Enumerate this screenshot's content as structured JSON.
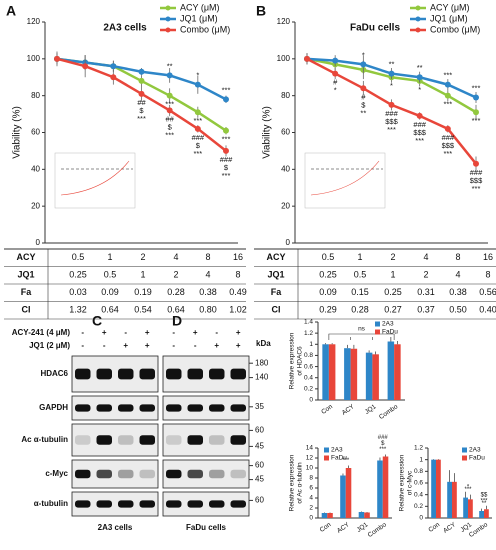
{
  "panels": [
    "A",
    "B",
    "C",
    "D"
  ],
  "chart_data": [
    {
      "type": "line",
      "title": "2A3  cells",
      "y_label": "Viability (%)",
      "categories": [
        null,
        null,
        null,
        null,
        null,
        null,
        null
      ],
      "ylim": [
        0,
        120
      ],
      "yticks": [
        0,
        20,
        40,
        60,
        80,
        100,
        120
      ],
      "legend": "upper right",
      "series": [
        {
          "name": "ACY (μM)",
          "color": "#92c83e",
          "values": [
            100,
            98,
            96,
            88,
            80,
            71,
            61
          ],
          "errors": [
            3,
            4,
            3,
            3,
            4,
            3,
            2
          ],
          "significance": [
            null,
            null,
            null,
            null,
            [
              "***"
            ],
            [
              "***"
            ],
            [
              "***"
            ]
          ]
        },
        {
          "name": "JQ1 (μM)",
          "color": "#2e86c8",
          "values": [
            100,
            98,
            96,
            93,
            91,
            86,
            78
          ],
          "errors": [
            3,
            4,
            3,
            2,
            4,
            5,
            2
          ],
          "significance": [
            null,
            null,
            null,
            null,
            [
              "**"
            ],
            [
              "*"
            ],
            [
              "***"
            ]
          ]
        },
        {
          "name": "Combo (μM)",
          "color": "#e8463a",
          "values": [
            100,
            96,
            90,
            81,
            72,
            62,
            50
          ],
          "errors": [
            4,
            6,
            4,
            4,
            3,
            2,
            3
          ],
          "significance": [
            null,
            null,
            null,
            [
              "##",
              "$",
              "***"
            ],
            [
              "##",
              "$",
              "***"
            ],
            [
              "###",
              "$",
              "***"
            ],
            [
              "###",
              "$",
              "***"
            ]
          ]
        }
      ]
    },
    {
      "type": "line",
      "title": "FaDu cells",
      "y_label": "Viability (%)",
      "categories": [
        null,
        null,
        null,
        null,
        null,
        null,
        null
      ],
      "ylim": [
        0,
        120
      ],
      "yticks": [
        0,
        20,
        40,
        60,
        80,
        100,
        120
      ],
      "legend": "upper right",
      "series": [
        {
          "name": "ACY (μM)",
          "color": "#92c83e",
          "values": [
            100,
            97,
            94,
            90,
            88,
            80,
            71
          ],
          "errors": [
            3,
            3,
            5,
            3,
            3,
            3,
            4
          ],
          "significance": [
            null,
            null,
            null,
            [
              "*"
            ],
            [
              "*"
            ],
            [
              "***"
            ],
            [
              "***"
            ]
          ]
        },
        {
          "name": "JQ1 (μM)",
          "color": "#2e86c8",
          "values": [
            100,
            99,
            97,
            92,
            90,
            86,
            79
          ],
          "errors": [
            3,
            3,
            5,
            3,
            3,
            3,
            3
          ],
          "significance": [
            null,
            null,
            [
              "*"
            ],
            [
              "**"
            ],
            [
              "**"
            ],
            [
              "***"
            ],
            [
              "***"
            ]
          ]
        },
        {
          "name": "Combo (μM)",
          "color": "#e8463a",
          "values": [
            100,
            92,
            84,
            75,
            69,
            62,
            43
          ],
          "errors": [
            3,
            3,
            4,
            3,
            2,
            2,
            4
          ],
          "significance": [
            null,
            [
              "#",
              "*"
            ],
            [
              "#",
              "$",
              "**"
            ],
            [
              "###",
              "$$$",
              "***"
            ],
            [
              "###",
              "$$$",
              "***"
            ],
            [
              "###",
              "$$$",
              "***"
            ],
            [
              "###",
              "$$$",
              "***"
            ]
          ]
        }
      ]
    },
    {
      "type": "bar",
      "y_label": [
        "Relative expression",
        "of HDAC6"
      ],
      "categories": [
        "Con",
        "ACY",
        "JQ1",
        "Combo"
      ],
      "ylim": [
        0,
        1.4
      ],
      "yticks": [
        0,
        0.2,
        0.4,
        0.6,
        0.8,
        1,
        1.2,
        1.4
      ],
      "legend": "upper right",
      "bracket": "ns",
      "series": [
        {
          "name": "2A3",
          "color": "#2e86c8",
          "values": [
            1,
            0.93,
            0.85,
            1.05
          ],
          "errors": [
            0.02,
            0.06,
            0.04,
            0.08
          ]
        },
        {
          "name": "FaDu",
          "color": "#e8463a",
          "values": [
            1,
            0.92,
            0.82,
            1
          ],
          "errors": [
            0.02,
            0.07,
            0.05,
            0.06
          ]
        }
      ]
    },
    {
      "type": "bar",
      "y_label": [
        "Relative expression",
        "of Ac α-tubulin"
      ],
      "categories": [
        "Con",
        "ACY",
        "JQ1",
        "Combo"
      ],
      "ylim": [
        0,
        14
      ],
      "yticks": [
        0,
        2,
        4,
        6,
        8,
        10,
        12,
        14
      ],
      "legend": "upper left",
      "series": [
        {
          "name": "2A3",
          "color": "#2e86c8",
          "values": [
            1,
            8.5,
            1.2,
            11.5
          ],
          "errors": [
            0.1,
            0.4,
            0.1,
            0.6
          ]
        },
        {
          "name": "FaDu",
          "color": "#e8463a",
          "values": [
            1,
            10,
            1.1,
            12.3
          ],
          "errors": [
            0.1,
            0.5,
            0.1,
            0.4
          ],
          "significance": [
            null,
            [
              "***"
            ],
            null,
            [
              "###",
              "$",
              "***"
            ]
          ]
        }
      ]
    },
    {
      "type": "bar",
      "y_label": [
        "Relative expression",
        "of c-Myc"
      ],
      "categories": [
        "Con",
        "ACY",
        "JQ1",
        "Combo"
      ],
      "ylim": [
        0,
        1.2
      ],
      "yticks": [
        0,
        0.2,
        0.4,
        0.6,
        0.8,
        1,
        1.2
      ],
      "legend": "upper right",
      "series": [
        {
          "name": "2A3",
          "color": "#2e86c8",
          "values": [
            1,
            0.62,
            0.35,
            0.12
          ],
          "errors": [
            0.01,
            0.2,
            0.1,
            0.04
          ],
          "significance": [
            null,
            null,
            [
              "*"
            ],
            [
              "**"
            ]
          ]
        },
        {
          "name": "FaDu",
          "color": "#e8463a",
          "values": [
            1,
            0.62,
            0.32,
            0.15
          ],
          "errors": [
            0.01,
            0.15,
            0.08,
            0.06
          ],
          "significance": [
            null,
            null,
            [
              "***"
            ],
            [
              "$$",
              "***"
            ]
          ]
        }
      ]
    }
  ],
  "tables": [
    {
      "rows": [
        {
          "label": "ACY",
          "cells": [
            "0.5",
            "1",
            "2",
            "4",
            "8",
            "16"
          ]
        },
        {
          "label": "JQ1",
          "cells": [
            "0.25",
            "0.5",
            "1",
            "2",
            "4",
            "8"
          ]
        },
        {
          "label": "Fa",
          "cells": [
            "0.03",
            "0.09",
            "0.19",
            "0.28",
            "0.38",
            "0.49"
          ]
        },
        {
          "label": "CI",
          "cells": [
            "1.32",
            "0.64",
            "0.54",
            "0.64",
            "0.80",
            "1.02"
          ]
        }
      ]
    },
    {
      "rows": [
        {
          "label": "ACY",
          "cells": [
            "0.5",
            "1",
            "2",
            "4",
            "8",
            "16"
          ]
        },
        {
          "label": "JQ1",
          "cells": [
            "0.25",
            "0.5",
            "1",
            "2",
            "4",
            "8"
          ]
        },
        {
          "label": "Fa",
          "cells": [
            "0.09",
            "0.15",
            "0.25",
            "0.31",
            "0.38",
            "0.56"
          ]
        },
        {
          "label": "CI",
          "cells": [
            "0.29",
            "0.28",
            "0.27",
            "0.37",
            "0.50",
            "0.40"
          ]
        }
      ]
    }
  ],
  "blot": {
    "treatments": [
      {
        "label": "ACY-241 (4 μM)",
        "signs": [
          "-",
          "+",
          "-",
          "+"
        ]
      },
      {
        "label": "JQ1 (2 μM)",
        "signs": [
          "-",
          "-",
          "+",
          "+"
        ]
      }
    ],
    "proteins": [
      {
        "name": "HDAC6",
        "markers": [
          "180",
          "140"
        ]
      },
      {
        "name": "GAPDH",
        "markers": [
          "35"
        ]
      },
      {
        "name": "Ac α-tubulin",
        "markers": [
          "60",
          "45"
        ]
      },
      {
        "name": "c-Myc",
        "markers": [
          "60",
          "45"
        ]
      },
      {
        "name": "α-tubulin",
        "markers": [
          "60"
        ]
      }
    ],
    "unit": "kDa",
    "cells": [
      "2A3 cells",
      "FaDu cells"
    ]
  }
}
